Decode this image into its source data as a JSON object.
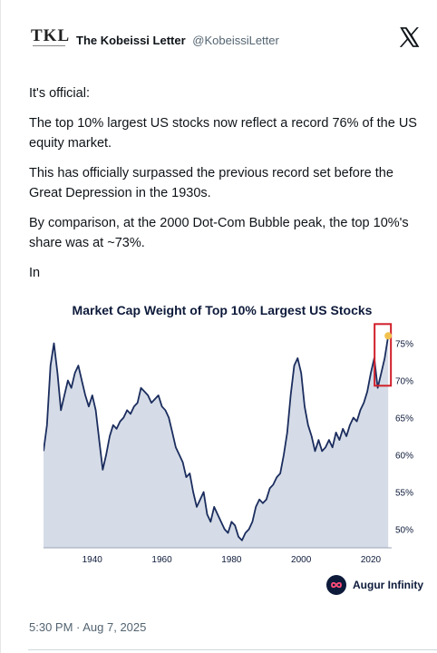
{
  "header": {
    "logo_text": "TKL",
    "author_name": "The Kobeissi Letter",
    "author_handle": "@KobeissiLetter",
    "platform_icon": "x-logo-icon"
  },
  "body": {
    "paragraphs": [
      "It's official:",
      "The top 10% largest US stocks now reflect a record 76% of the US equity market.",
      "This has officially surpassed the previous record set before the Great Depression in the 1930s.",
      "By comparison, at the 2000 Dot-Com Bubble peak, the top 10%'s share was at ~73%.",
      "In"
    ]
  },
  "chart_data": {
    "type": "area",
    "title": "Market Cap Weight of Top 10% Largest US Stocks",
    "xlabel": "",
    "ylabel": "",
    "x_ticks": [
      "1940",
      "1960",
      "1980",
      "2000",
      "2020"
    ],
    "y_ticks": [
      "50%",
      "55%",
      "60%",
      "65%",
      "70%",
      "75%"
    ],
    "y_axis_position": "right",
    "xlim": [
      1926,
      2026
    ],
    "ylim": [
      47.5,
      77.5
    ],
    "x": [
      1926,
      1927,
      1928,
      1929,
      1930,
      1931,
      1932,
      1933,
      1934,
      1935,
      1936,
      1937,
      1938,
      1939,
      1940,
      1941,
      1942,
      1943,
      1944,
      1945,
      1946,
      1947,
      1948,
      1949,
      1950,
      1951,
      1952,
      1953,
      1954,
      1955,
      1956,
      1957,
      1958,
      1959,
      1960,
      1961,
      1962,
      1963,
      1964,
      1965,
      1966,
      1967,
      1968,
      1969,
      1970,
      1971,
      1972,
      1973,
      1974,
      1975,
      1976,
      1977,
      1978,
      1979,
      1980,
      1981,
      1982,
      1983,
      1984,
      1985,
      1986,
      1987,
      1988,
      1989,
      1990,
      1991,
      1992,
      1993,
      1994,
      1995,
      1996,
      1997,
      1998,
      1999,
      2000,
      2001,
      2002,
      2003,
      2004,
      2005,
      2006,
      2007,
      2008,
      2009,
      2010,
      2011,
      2012,
      2013,
      2014,
      2015,
      2016,
      2017,
      2018,
      2019,
      2020,
      2021,
      2022,
      2023,
      2024,
      2025
    ],
    "values": [
      60.5,
      64,
      72,
      75,
      71,
      66,
      68,
      70,
      69,
      71,
      72,
      70,
      68,
      66.5,
      68,
      66,
      62,
      58,
      60,
      62.5,
      64,
      63.5,
      64.5,
      65,
      66,
      65.5,
      66.5,
      67,
      69,
      68.5,
      68,
      67,
      67.5,
      68,
      66.5,
      66,
      65,
      63,
      61,
      60,
      59,
      57,
      57.5,
      55,
      53,
      54,
      55,
      52,
      51,
      53,
      52,
      51,
      50,
      49.5,
      51,
      50.5,
      49,
      48.5,
      49.5,
      50,
      51,
      53,
      54,
      53.5,
      54,
      55.5,
      56,
      57,
      57.5,
      60,
      63,
      68,
      72,
      73,
      71,
      66.5,
      64,
      62.5,
      60.5,
      62,
      60.5,
      61,
      62,
      61,
      63,
      62,
      63.5,
      62.5,
      64,
      65,
      64.5,
      66,
      67,
      68.5,
      71,
      73,
      69,
      71,
      73,
      76
    ],
    "highlight": {
      "x": 2025,
      "value": 76,
      "marker_color": "#f2c14e",
      "box_color": "#d01f2a"
    },
    "colors": {
      "line": "#1b2d5e",
      "fill": "#d5dce7",
      "plot_bg": "#ffffff"
    },
    "grid": false,
    "legend": "none"
  },
  "brand": {
    "name": "Augur Infinity",
    "icon": "infinity-logo-icon"
  },
  "timestamp": "5:30 PM · Aug 7, 2025"
}
